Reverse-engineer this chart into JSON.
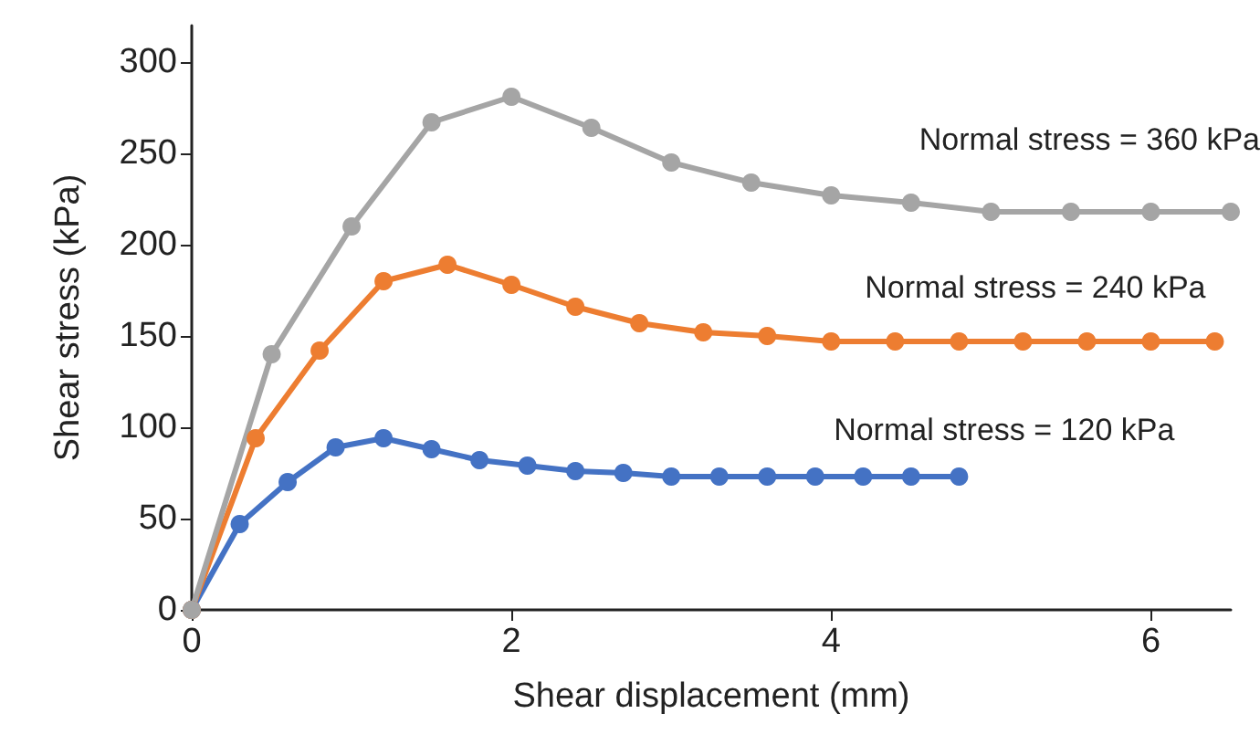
{
  "chart_data": {
    "type": "line",
    "xlabel": "Shear displacement (mm)",
    "ylabel": "Shear stress (kPa)",
    "xlim": [
      0,
      6.5
    ],
    "xticks": [
      0,
      2,
      4,
      6
    ],
    "ylim": [
      0,
      320
    ],
    "yticks": [
      0,
      50,
      100,
      150,
      200,
      250,
      300
    ],
    "grid": false,
    "legend": false,
    "marker": "circle",
    "series": [
      {
        "name": "Normal stress = 120 kPa",
        "color": "#4472c4",
        "x": [
          0,
          0.3,
          0.6,
          0.9,
          1.2,
          1.5,
          1.8,
          2.1,
          2.4,
          2.7,
          3.0,
          3.3,
          3.6,
          3.9,
          4.2,
          4.5,
          4.8
        ],
        "values": [
          0,
          47,
          70,
          89,
          94,
          88,
          82,
          79,
          76,
          75,
          73,
          73,
          73,
          73,
          73,
          73,
          73
        ]
      },
      {
        "name": "Normal stress = 240 kPa",
        "color": "#ed7d31",
        "x": [
          0,
          0.4,
          0.8,
          1.2,
          1.6,
          2.0,
          2.4,
          2.8,
          3.2,
          3.6,
          4.0,
          4.4,
          4.8,
          5.2,
          5.6,
          6.0,
          6.4
        ],
        "values": [
          0,
          94,
          142,
          180,
          189,
          178,
          166,
          157,
          152,
          150,
          147,
          147,
          147,
          147,
          147,
          147,
          147
        ]
      },
      {
        "name": "Normal stress = 360 kPa",
        "color": "#a5a5a5",
        "x": [
          0,
          0.5,
          1,
          1.5,
          2,
          2.5,
          3,
          3.5,
          4,
          4.5,
          5,
          5.5,
          6,
          6.5
        ],
        "values": [
          0,
          140,
          210,
          267,
          281,
          264,
          245,
          234,
          227,
          223,
          218,
          218,
          218,
          218
        ]
      }
    ]
  }
}
